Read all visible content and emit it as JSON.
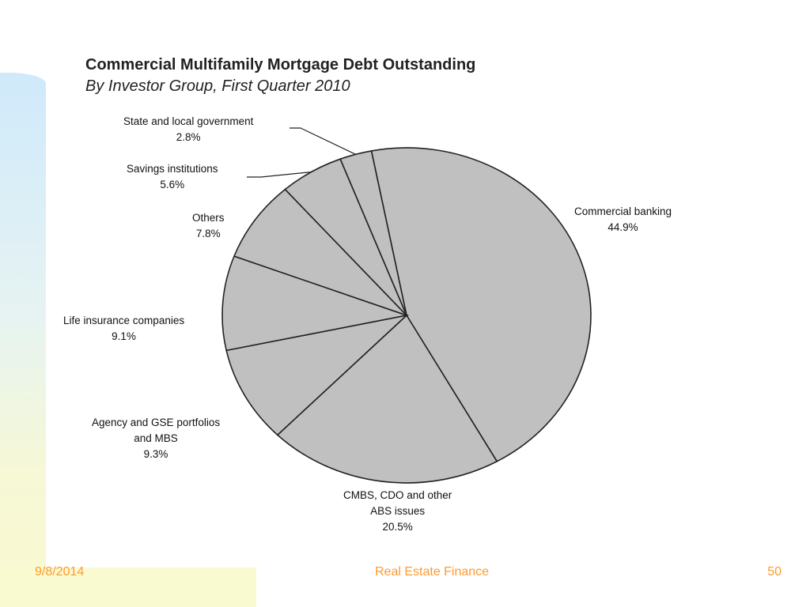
{
  "chart_data": {
    "type": "pie",
    "title": "Commercial Multifamily Mortgage Debt Outstanding",
    "subtitle": "By Investor Group, First Quarter 2010",
    "categories": [
      "Commercial banking",
      "CMBS, CDO and other ABS issues",
      "Agency and GSE portfolios and MBS",
      "Life insurance companies",
      "Others",
      "Savings institutions",
      "State and local government"
    ],
    "values": [
      44.9,
      20.5,
      9.3,
      9.1,
      7.8,
      5.6,
      2.8
    ],
    "value_labels": [
      "44.9%",
      "20.5%",
      "9.3%",
      "9.1%",
      "7.8%",
      "5.6%",
      "2.8%"
    ],
    "slice_color": "#c0c0c0",
    "edge_color": "#222222"
  },
  "labels": [
    {
      "lines": [
        "Commercial banking"
      ],
      "value": "44.9%"
    },
    {
      "lines": [
        "CMBS, CDO and other",
        "ABS issues"
      ],
      "value": "20.5%"
    },
    {
      "lines": [
        "Agency and GSE portfolios",
        "and MBS"
      ],
      "value": "9.3%"
    },
    {
      "lines": [
        "Life insurance companies"
      ],
      "value": "9.1%"
    },
    {
      "lines": [
        "Others"
      ],
      "value": "7.8%"
    },
    {
      "lines": [
        "Savings institutions"
      ],
      "value": "5.6%"
    },
    {
      "lines": [
        "State and local government"
      ],
      "value": "2.8%"
    }
  ],
  "footer": {
    "date": "9/8/2014",
    "title": "Real Estate Finance",
    "page": "50"
  }
}
